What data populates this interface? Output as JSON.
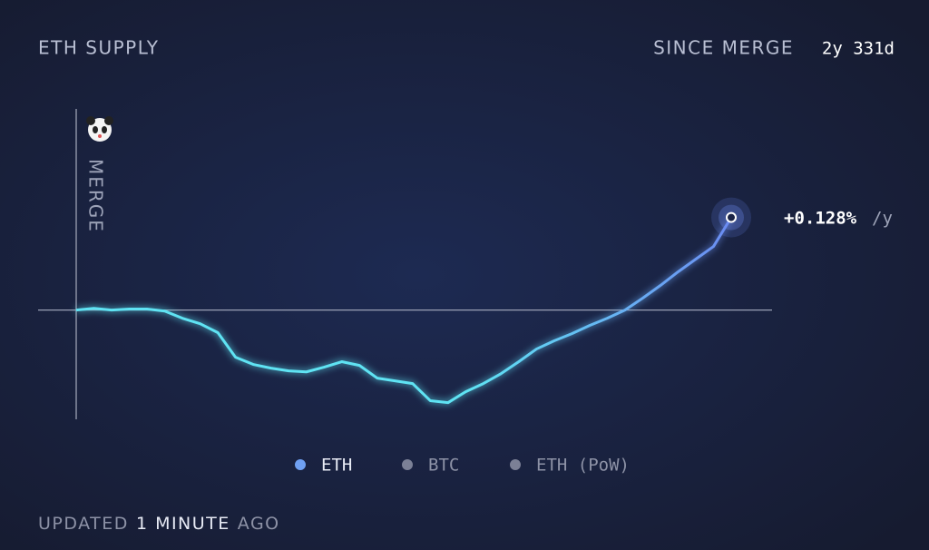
{
  "chart_data": {
    "type": "line",
    "title": "ETH SUPPLY",
    "since_label": "SINCE MERGE",
    "since_value": "2y 331d",
    "marker_label": "MERGE",
    "rate_label": "+0.128%",
    "rate_unit": "/y",
    "ylim": [
      -0.44,
      0.81
    ],
    "series": [
      {
        "name": "ETH",
        "color": "#5fe3f3",
        "color_end": "#6c8cf2",
        "values": [
          0,
          0.007,
          0,
          0.004,
          0.004,
          -0.004,
          -0.033,
          -0.055,
          -0.091,
          -0.19,
          -0.219,
          -0.234,
          -0.245,
          -0.249,
          -0.23,
          -0.208,
          -0.223,
          -0.274,
          -0.285,
          -0.296,
          -0.365,
          -0.373,
          -0.329,
          -0.296,
          -0.256,
          -0.208,
          -0.157,
          -0.124,
          -0.095,
          -0.062,
          -0.033,
          0,
          0.048,
          0.099,
          0.154,
          0.205,
          0.256,
          0.373
        ]
      }
    ],
    "inactive_series": [
      {
        "name": "BTC",
        "color": "#7b8096"
      },
      {
        "name": "ETH (PoW)",
        "color": "#7b8096"
      }
    ],
    "footer": [
      "UPDATED",
      "1 MINUTE",
      "AGO"
    ]
  }
}
